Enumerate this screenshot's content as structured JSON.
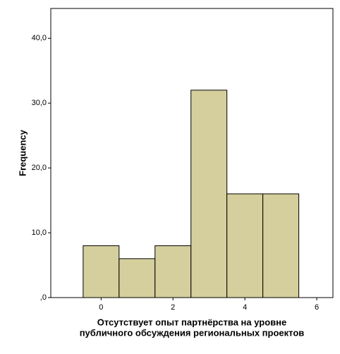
{
  "chart_data": {
    "type": "histogram",
    "bins": [
      -0.5,
      0.5,
      1.5,
      2.5,
      3.5,
      4.5,
      5.5
    ],
    "values": [
      8,
      6,
      8,
      32,
      16,
      16
    ],
    "color": "#d4cf9c",
    "xlabel": [
      "Отсутствует опыт партнёрства на уровне",
      "публичного обсуждения региональных проектов"
    ],
    "ylabel": "Frequency",
    "xlim": [
      -1.4,
      6.45
    ],
    "xticks": [
      0,
      2,
      4,
      6
    ],
    "ylim": [
      0,
      44.6
    ],
    "yticks": [
      {
        "value": 0,
        "label": ",0"
      },
      {
        "value": 10,
        "label": "10,0"
      },
      {
        "value": 20,
        "label": "20,0"
      },
      {
        "value": 30,
        "label": "30,0"
      },
      {
        "value": 40,
        "label": "40,0"
      }
    ],
    "grid": false
  }
}
